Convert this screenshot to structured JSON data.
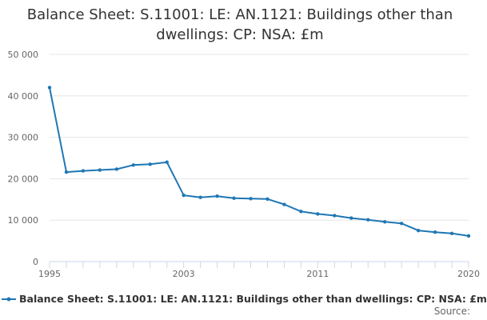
{
  "chart_data": {
    "type": "line",
    "title_line1": "Balance Sheet: S.11001: LE: AN.1121: Buildings other than",
    "title_line2": "dwellings: CP: NSA: £m",
    "xlabel": "",
    "ylabel": "",
    "x_ticks": [
      "1995",
      "2003",
      "2011",
      "2020"
    ],
    "y_ticks": [
      "0",
      "10 000",
      "20 000",
      "30 000",
      "40 000",
      "50 000"
    ],
    "ylim": [
      0,
      50000
    ],
    "xlim": [
      1995,
      2020
    ],
    "grid": true,
    "legend_position": "bottom",
    "series": [
      {
        "name": "Balance Sheet: S.11001: LE: AN.1121: Buildings other than dwellings: CP: NSA: £m",
        "color": "#1f77b4",
        "x": [
          1995,
          1996,
          1997,
          1998,
          1999,
          2000,
          2001,
          2002,
          2003,
          2004,
          2005,
          2006,
          2007,
          2008,
          2009,
          2010,
          2011,
          2012,
          2013,
          2014,
          2015,
          2016,
          2017,
          2018,
          2019,
          2020
        ],
        "values": [
          42000,
          21600,
          21900,
          22100,
          22300,
          23300,
          23500,
          24000,
          16000,
          15500,
          15800,
          15300,
          15200,
          15100,
          13800,
          12100,
          11500,
          11100,
          10500,
          10100,
          9600,
          9200,
          7500,
          7100,
          6800,
          6200
        ]
      }
    ]
  },
  "source_label": "Source:"
}
